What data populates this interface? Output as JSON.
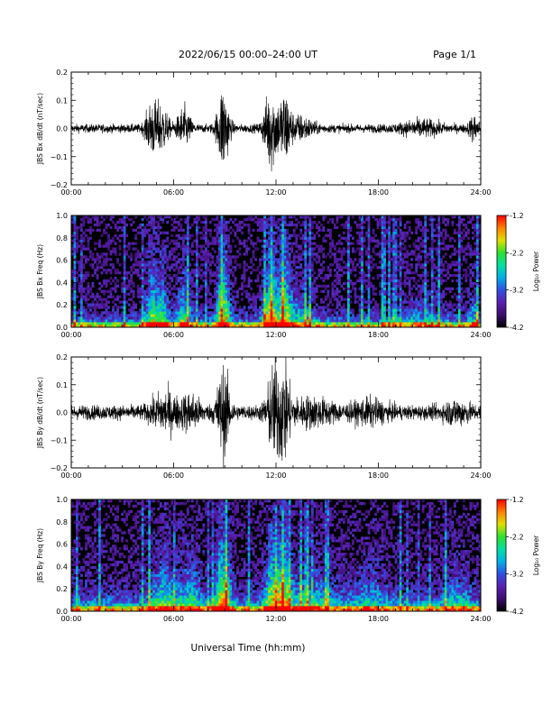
{
  "header": {
    "title": "2022/06/15  00:00–24:00 UT",
    "page": "Page 1/1"
  },
  "colors": {
    "waveform": "#000000",
    "background": "#ffffff",
    "colormap": [
      "#000000",
      "#3a0d6e",
      "#5a1fb0",
      "#3050e0",
      "#00b0e8",
      "#00e0a0",
      "#30e030",
      "#e0e000",
      "#ff8000",
      "#ff0000"
    ]
  },
  "chart_data": [
    {
      "type": "line",
      "panel": "bx-waveform",
      "ylabel": "JBS Bx dB/dt (nT/sec)",
      "ylim": [
        -0.2,
        0.2
      ],
      "yticks": [
        "0.2",
        "0.1",
        "0.0",
        "−0.1",
        "−0.2"
      ],
      "xlim": [
        0,
        24
      ],
      "xticks": [
        "00:00",
        "06:00",
        "12:00",
        "18:00",
        "24:00"
      ],
      "bursts": [
        {
          "t": 4.7,
          "width": 0.35,
          "amp": 0.11
        },
        {
          "t": 5.3,
          "width": 0.4,
          "amp": 0.1
        },
        {
          "t": 6.6,
          "width": 0.4,
          "amp": 0.09
        },
        {
          "t": 8.9,
          "width": 0.35,
          "amp": 0.2
        },
        {
          "t": 11.7,
          "width": 0.4,
          "amp": 0.19
        },
        {
          "t": 12.5,
          "width": 0.35,
          "amp": 0.16
        },
        {
          "t": 13.4,
          "width": 0.8,
          "amp": 0.05
        },
        {
          "t": 20.5,
          "width": 1.2,
          "amp": 0.03
        },
        {
          "t": 23.6,
          "width": 0.3,
          "amp": 0.05
        }
      ],
      "base_amp": 0.02
    },
    {
      "type": "heatmap",
      "panel": "bx-spectrogram",
      "ylabel": "JBS Bx Freq (Hz)",
      "ylim": [
        0.0,
        1.0
      ],
      "yticks": [
        "1.0",
        "0.8",
        "0.6",
        "0.4",
        "0.2",
        "0.0"
      ],
      "xlim": [
        0,
        24
      ],
      "xticks": [
        "00:00",
        "06:00",
        "12:00",
        "18:00",
        "24:00"
      ],
      "colorbar": {
        "label": "Log₁₀ Power",
        "range": [
          -4.2,
          -1.2
        ],
        "ticks": [
          "-1.2",
          "-2.2",
          "-3.2",
          "-4.2"
        ]
      }
    },
    {
      "type": "line",
      "panel": "by-waveform",
      "ylabel": "JBS By dB/dt (nT/sec)",
      "ylim": [
        -0.2,
        0.2
      ],
      "yticks": [
        "0.2",
        "0.1",
        "0.0",
        "−0.1",
        "−0.2"
      ],
      "xlim": [
        0,
        24
      ],
      "xticks": [
        "00:00",
        "06:00",
        "12:00",
        "18:00",
        "24:00"
      ],
      "bursts": [
        {
          "t": 5.5,
          "width": 0.8,
          "amp": 0.08
        },
        {
          "t": 7.0,
          "width": 0.6,
          "amp": 0.07
        },
        {
          "t": 8.9,
          "width": 0.4,
          "amp": 0.2
        },
        {
          "t": 11.9,
          "width": 0.45,
          "amp": 0.2
        },
        {
          "t": 12.5,
          "width": 0.35,
          "amp": 0.17
        },
        {
          "t": 14.0,
          "width": 1.5,
          "amp": 0.05
        },
        {
          "t": 17.5,
          "width": 1.0,
          "amp": 0.04
        },
        {
          "t": 22.6,
          "width": 0.8,
          "amp": 0.04
        }
      ],
      "base_amp": 0.035
    },
    {
      "type": "heatmap",
      "panel": "by-spectrogram",
      "ylabel": "JBS By Freq (Hz)",
      "ylim": [
        0.0,
        1.0
      ],
      "yticks": [
        "1.0",
        "0.8",
        "0.6",
        "0.4",
        "0.2",
        "0.0"
      ],
      "xlim": [
        0,
        24
      ],
      "xticks": [
        "00:00",
        "06:00",
        "12:00",
        "18:00",
        "24:00"
      ],
      "colorbar": {
        "label": "Log₁₀ Power",
        "range": [
          -4.2,
          -1.2
        ],
        "ticks": [
          "-1.2",
          "-2.2",
          "-3.2",
          "-4.2"
        ]
      }
    }
  ],
  "xaxis_title": "Universal Time (hh:mm)"
}
